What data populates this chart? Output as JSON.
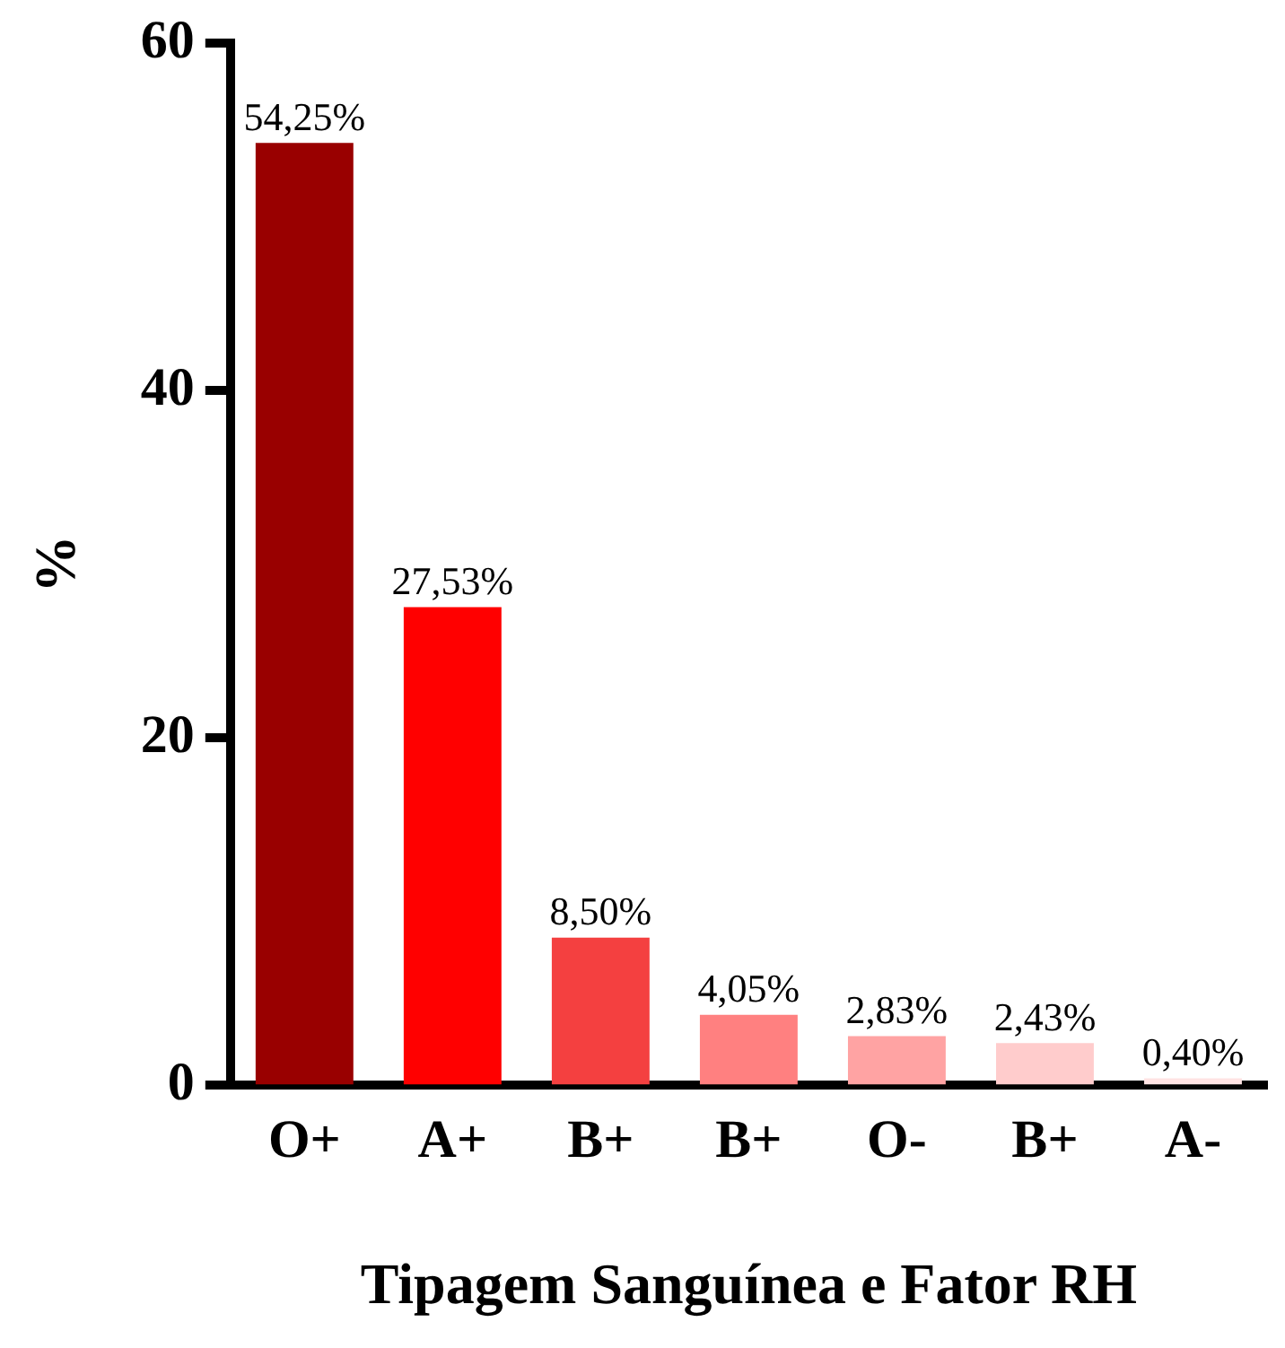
{
  "chart_data": {
    "type": "bar",
    "xlabel": "Tipagem Sanguínea e Fator RH",
    "ylabel": "%",
    "categories": [
      "O+",
      "A+",
      "B+",
      "B+",
      "O-",
      "B+",
      "A-"
    ],
    "values": [
      54.25,
      27.53,
      8.5,
      4.05,
      2.83,
      2.43,
      0.4
    ],
    "colors": [
      "#990000",
      "#ff0000",
      "#f44040",
      "#ff8080",
      "#ffa3a3",
      "#ffcccc",
      "#ffe3e3"
    ],
    "value_labels": [
      "54,25%",
      "27,53%",
      "8,50%",
      "4,05%",
      "2,83%",
      "2,43%",
      "0,40%"
    ],
    "ylim": [
      0,
      60
    ],
    "yticks": [
      0,
      20,
      40,
      60
    ],
    "grid": false,
    "legend": false
  }
}
